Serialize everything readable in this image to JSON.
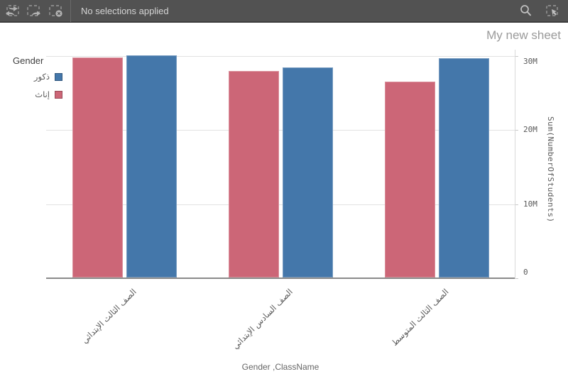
{
  "toolbar": {
    "status_text": "No selections applied",
    "icons": [
      "undo-icon",
      "redo-icon",
      "clear-selections-icon",
      "search-icon",
      "selections-tool-icon"
    ]
  },
  "sheet": {
    "title": "My new sheet"
  },
  "chart_data": {
    "type": "bar",
    "title": "",
    "xlabel": "Gender ,ClassName",
    "ylabel": "Sum(NumberOfStudents)",
    "legend_title": "Gender",
    "categories": [
      "الصف الثالث الإبتدائي",
      "الصف السادس الإبتدائي",
      "الصف الثالث المتوسط"
    ],
    "series": [
      {
        "name": "ذكور",
        "color": "#4477aa",
        "values": [
          30100000,
          28500000,
          29700000
        ]
      },
      {
        "name": "إناث",
        "color": "#cc6677",
        "values": [
          29800000,
          28000000,
          26600000
        ]
      }
    ],
    "ylim": [
      0,
      30000000
    ],
    "yticks": [
      {
        "value": 0,
        "label": "0"
      },
      {
        "value": 10000000,
        "label": "10M"
      },
      {
        "value": 20000000,
        "label": "20M"
      },
      {
        "value": 30000000,
        "label": "30M"
      }
    ],
    "grid": true,
    "legend_position": "top-left",
    "y_axis_side": "right",
    "bar_orientation": "vertical-grouped-rtl"
  },
  "colors": {
    "toolbar_bg": "#525252",
    "toolbar_icon": "#b3b3b3",
    "grid": "#e2e2e2",
    "baseline": "#8a8a8a",
    "axis_text": "#595959",
    "title_text": "#9a9a9a"
  }
}
